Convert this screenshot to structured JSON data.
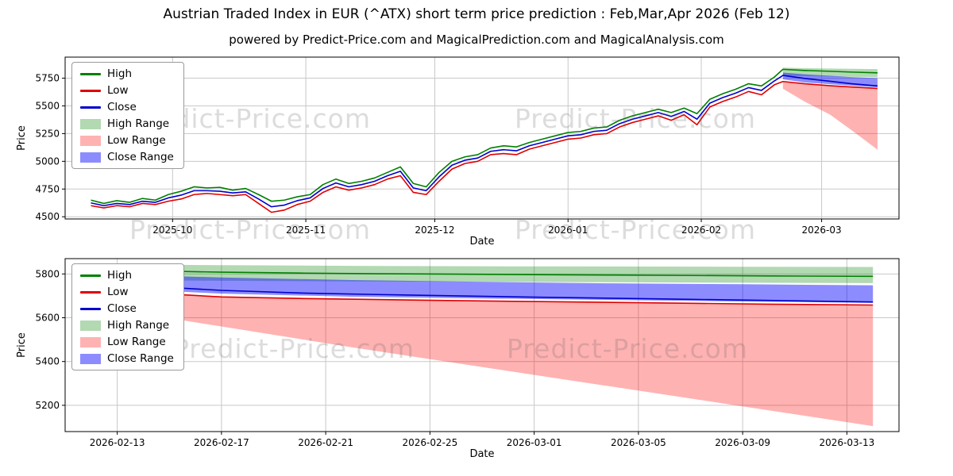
{
  "page": {
    "title": "Austrian Traded Index in EUR (^ATX) short term price prediction : Feb,Mar,Apr 2026 (Feb 12)",
    "subtitle": "powered by Predict-Price.com and MagicalPrediction.com and MagicalAnalysis.com",
    "watermark": "Predict-Price.com"
  },
  "chart_data": [
    {
      "type": "line",
      "name": "history-and-forecast-chart",
      "title": "Austrian Traded Index in EUR (^ATX) short term price prediction : Feb,Mar,Apr 2026 (Feb 12)",
      "subtitle": "powered by Predict-Price.com and MagicalPrediction.com and MagicalAnalysis.com",
      "xlabel": "Date",
      "ylabel": "Price",
      "x_unit": "days since 2025-09-12",
      "xlim": [
        -6,
        188
      ],
      "ylim": [
        4480,
        5940
      ],
      "grid": true,
      "legend_position": "upper-left",
      "yticks": [
        4500,
        4750,
        5000,
        5250,
        5500,
        5750
      ],
      "xticks": [
        {
          "v": 19,
          "label": "2025-10"
        },
        {
          "v": 50,
          "label": "2025-11"
        },
        {
          "v": 80,
          "label": "2025-12"
        },
        {
          "v": 111,
          "label": "2026-01"
        },
        {
          "v": 142,
          "label": "2026-02"
        },
        {
          "v": 170,
          "label": "2026-03"
        }
      ],
      "bands": [
        {
          "name": "High Range",
          "color": "rgba(0,128,0,0.30)",
          "x": [
            161,
            166,
            172,
            177,
            183
          ],
          "upper": [
            5845,
            5840,
            5837,
            5834,
            5832
          ],
          "lower": [
            5772,
            5768,
            5765,
            5762,
            5758
          ]
        },
        {
          "name": "Low Range",
          "color": "rgba(255,0,0,0.30)",
          "x": [
            161,
            166,
            172,
            177,
            183
          ],
          "upper": [
            5725,
            5700,
            5685,
            5672,
            5658
          ],
          "lower": [
            5655,
            5540,
            5420,
            5280,
            5105
          ]
        },
        {
          "name": "Close Range",
          "color": "rgba(0,0,255,0.45)",
          "x": [
            161,
            166,
            172,
            177,
            183
          ],
          "upper": [
            5800,
            5785,
            5772,
            5760,
            5750
          ],
          "lower": [
            5740,
            5712,
            5696,
            5682,
            5668
          ]
        }
      ],
      "series": [
        {
          "name": "High",
          "color": "#008000",
          "x": [
            0,
            3,
            6,
            9,
            12,
            15,
            18,
            21,
            24,
            27,
            30,
            33,
            36,
            39,
            42,
            45,
            48,
            51,
            54,
            57,
            60,
            63,
            66,
            69,
            72,
            75,
            78,
            81,
            84,
            87,
            90,
            93,
            96,
            99,
            102,
            105,
            108,
            111,
            114,
            117,
            120,
            123,
            126,
            129,
            132,
            135,
            138,
            141,
            144,
            147,
            150,
            153,
            156,
            159,
            161,
            166,
            172,
            177,
            183
          ],
          "y": [
            4650,
            4620,
            4645,
            4630,
            4665,
            4650,
            4700,
            4730,
            4770,
            4760,
            4765,
            4740,
            4755,
            4700,
            4640,
            4650,
            4680,
            4700,
            4790,
            4840,
            4800,
            4820,
            4850,
            4900,
            4950,
            4800,
            4770,
            4900,
            5000,
            5040,
            5060,
            5120,
            5140,
            5130,
            5170,
            5200,
            5230,
            5260,
            5270,
            5300,
            5310,
            5370,
            5410,
            5440,
            5470,
            5440,
            5480,
            5430,
            5560,
            5610,
            5650,
            5700,
            5680,
            5760,
            5830,
            5820,
            5812,
            5805,
            5798
          ]
        },
        {
          "name": "Low",
          "color": "#e00000",
          "x": [
            0,
            3,
            6,
            9,
            12,
            15,
            18,
            21,
            24,
            27,
            30,
            33,
            36,
            39,
            42,
            45,
            48,
            51,
            54,
            57,
            60,
            63,
            66,
            69,
            72,
            75,
            78,
            81,
            84,
            87,
            90,
            93,
            96,
            99,
            102,
            105,
            108,
            111,
            114,
            117,
            120,
            123,
            126,
            129,
            132,
            135,
            138,
            141,
            144,
            147,
            150,
            153,
            156,
            159,
            161,
            166,
            172,
            177,
            183
          ],
          "y": [
            4600,
            4580,
            4600,
            4590,
            4620,
            4610,
            4640,
            4660,
            4700,
            4710,
            4700,
            4690,
            4700,
            4620,
            4540,
            4560,
            4610,
            4640,
            4720,
            4770,
            4740,
            4760,
            4790,
            4840,
            4870,
            4720,
            4700,
            4820,
            4930,
            4980,
            5000,
            5060,
            5070,
            5060,
            5110,
            5140,
            5170,
            5200,
            5210,
            5240,
            5250,
            5310,
            5350,
            5380,
            5410,
            5370,
            5420,
            5330,
            5490,
            5540,
            5580,
            5630,
            5600,
            5690,
            5720,
            5700,
            5682,
            5670,
            5658
          ]
        },
        {
          "name": "Close",
          "color": "#0000cd",
          "x": [
            0,
            3,
            6,
            9,
            12,
            15,
            18,
            21,
            24,
            27,
            30,
            33,
            36,
            39,
            42,
            45,
            48,
            51,
            54,
            57,
            60,
            63,
            66,
            69,
            72,
            75,
            78,
            81,
            84,
            87,
            90,
            93,
            96,
            99,
            102,
            105,
            108,
            111,
            114,
            117,
            120,
            123,
            126,
            129,
            132,
            135,
            138,
            141,
            144,
            147,
            150,
            153,
            156,
            159,
            161,
            166,
            172,
            177,
            183
          ],
          "y": [
            4625,
            4600,
            4620,
            4610,
            4640,
            4630,
            4670,
            4695,
            4735,
            4735,
            4730,
            4715,
            4725,
            4660,
            4590,
            4605,
            4645,
            4670,
            4755,
            4805,
            4770,
            4790,
            4820,
            4870,
            4910,
            4760,
            4735,
            4860,
            4965,
            5010,
            5030,
            5090,
            5105,
            5095,
            5140,
            5170,
            5200,
            5230,
            5240,
            5270,
            5280,
            5340,
            5380,
            5410,
            5440,
            5405,
            5450,
            5380,
            5525,
            5575,
            5615,
            5665,
            5640,
            5725,
            5775,
            5748,
            5722,
            5700,
            5680
          ]
        }
      ]
    },
    {
      "type": "line",
      "name": "forecast-zoom-chart",
      "xlabel": "Date",
      "ylabel": "Price",
      "x_unit": "days since 2026-02-12",
      "xlim": [
        -1,
        31
      ],
      "ylim": [
        5080,
        5870
      ],
      "grid": true,
      "legend_position": "upper-left",
      "yticks": [
        5200,
        5400,
        5600,
        5800
      ],
      "xticks": [
        {
          "v": 1,
          "label": "2026-02-13"
        },
        {
          "v": 5,
          "label": "2026-02-17"
        },
        {
          "v": 9,
          "label": "2026-02-21"
        },
        {
          "v": 13,
          "label": "2026-02-25"
        },
        {
          "v": 17,
          "label": "2026-03-01"
        },
        {
          "v": 21,
          "label": "2026-03-05"
        },
        {
          "v": 25,
          "label": "2026-03-09"
        },
        {
          "v": 29,
          "label": "2026-03-13"
        }
      ],
      "bands": [
        {
          "name": "High Range",
          "color": "rgba(0,128,0,0.30)",
          "x": [
            0,
            5,
            10,
            15,
            20,
            25,
            30
          ],
          "upper": [
            5845,
            5840,
            5837,
            5835,
            5834,
            5833,
            5832
          ],
          "lower": [
            5772,
            5769,
            5766,
            5764,
            5762,
            5760,
            5758
          ]
        },
        {
          "name": "Low Range",
          "color": "rgba(255,0,0,0.30)",
          "x": [
            0,
            5,
            10,
            15,
            20,
            25,
            30
          ],
          "upper": [
            5725,
            5698,
            5686,
            5676,
            5668,
            5662,
            5656
          ],
          "lower": [
            5655,
            5560,
            5465,
            5375,
            5285,
            5195,
            5105
          ]
        },
        {
          "name": "Close Range",
          "color": "rgba(0,0,255,0.45)",
          "x": [
            0,
            5,
            10,
            15,
            20,
            25,
            30
          ],
          "upper": [
            5800,
            5784,
            5772,
            5764,
            5757,
            5753,
            5748
          ],
          "lower": [
            5740,
            5710,
            5696,
            5688,
            5681,
            5674,
            5668
          ]
        }
      ],
      "series": [
        {
          "name": "High",
          "color": "#008000",
          "x": [
            0,
            2,
            5,
            8,
            11,
            14,
            17,
            20,
            23,
            26,
            30
          ],
          "y": [
            5830,
            5815,
            5808,
            5804,
            5801,
            5799,
            5797,
            5795,
            5793,
            5791,
            5789
          ]
        },
        {
          "name": "Low",
          "color": "#e00000",
          "x": [
            0,
            2,
            5,
            8,
            11,
            14,
            17,
            20,
            23,
            26,
            30
          ],
          "y": [
            5770,
            5715,
            5695,
            5688,
            5683,
            5678,
            5674,
            5670,
            5666,
            5662,
            5658
          ]
        },
        {
          "name": "Close",
          "color": "#0000cd",
          "x": [
            0,
            2,
            5,
            8,
            11,
            14,
            17,
            20,
            23,
            26,
            30
          ],
          "y": [
            5775,
            5745,
            5725,
            5713,
            5706,
            5700,
            5694,
            5689,
            5684,
            5679,
            5672
          ]
        }
      ]
    }
  ]
}
